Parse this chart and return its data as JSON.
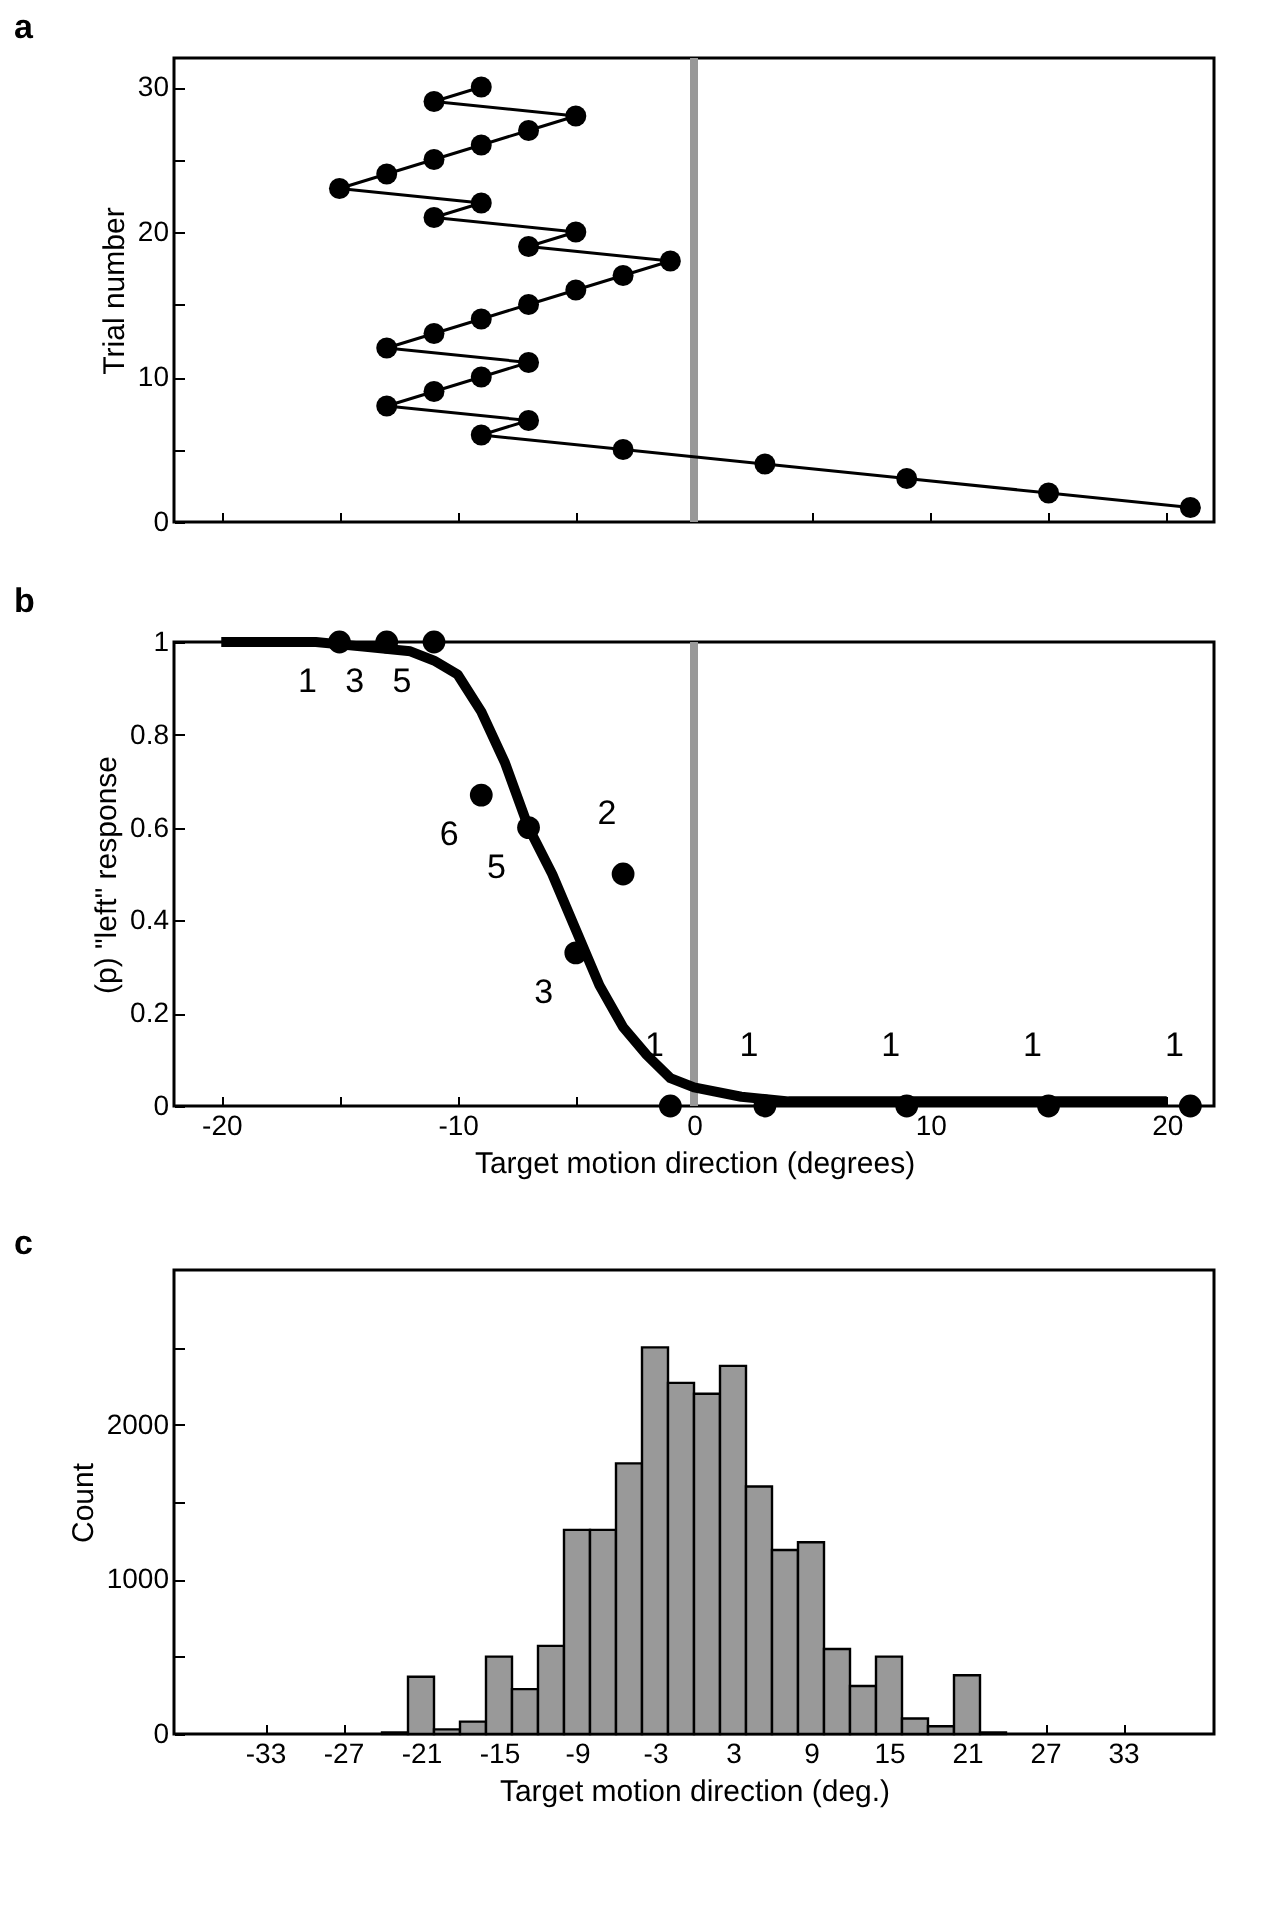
{
  "chart_data": [
    {
      "type": "line",
      "title": "a",
      "ylabel": "Trial number",
      "marker": "circle",
      "grid": false,
      "tick_labels": "y",
      "series": [
        {
          "type": "line",
          "color": "#000000",
          "x": [
            21,
            15,
            9,
            3,
            -3,
            -9,
            -7,
            -13,
            -11,
            -9,
            -7,
            -13,
            -11,
            -9,
            -7,
            -5,
            -3,
            -1,
            -7,
            -5,
            -11,
            -9,
            -15,
            -13,
            -11,
            -9,
            -7,
            -5,
            -11,
            -9
          ],
          "values": [
            1,
            2,
            3,
            4,
            5,
            6,
            7,
            8,
            9,
            10,
            11,
            12,
            13,
            14,
            15,
            16,
            17,
            18,
            19,
            20,
            21,
            22,
            23,
            24,
            25,
            26,
            27,
            28,
            29,
            30
          ]
        }
      ],
      "xlim": [
        -22,
        22
      ],
      "xticks": [
        {
          "value": -20,
          "label": null
        },
        {
          "value": -15,
          "label": null
        },
        {
          "value": -10,
          "label": null
        },
        {
          "value": -5,
          "label": null
        },
        {
          "value": 0,
          "label": null
        },
        {
          "value": 5,
          "label": null
        },
        {
          "value": 10,
          "label": null
        },
        {
          "value": 15,
          "label": null
        },
        {
          "value": 20,
          "label": null
        }
      ],
      "ylim": [
        0,
        32
      ],
      "yticks": [
        0,
        {
          "value": 5,
          "label": null
        },
        10,
        {
          "value": 15,
          "label": null
        },
        20,
        {
          "value": 25,
          "label": null
        },
        30
      ],
      "ref_lines": [
        {
          "axis": "x",
          "value": 0,
          "color": "#999999"
        }
      ]
    },
    {
      "type": "scatter",
      "title": "b",
      "xlabel": "Target motion direction (degrees)",
      "ylabel": "(p) \"left\" response",
      "grid": false,
      "marker": "circle",
      "annotations": [
        {
          "text": "1",
          "x": -15,
          "y": 1
        },
        {
          "text": "3",
          "x": -13,
          "y": 1
        },
        {
          "text": "5",
          "x": -11,
          "y": 1
        },
        {
          "text": "6",
          "x": -9,
          "y": 0.67
        },
        {
          "text": "5",
          "x": -7,
          "y": 0.6
        },
        {
          "text": "3",
          "x": -5,
          "y": 0.33
        },
        {
          "text": "2",
          "x": -3,
          "y": 0.5
        },
        {
          "text": "1",
          "x": -1,
          "y": 0
        },
        {
          "text": "1",
          "x": 3,
          "y": 0
        },
        {
          "text": "1",
          "x": 9,
          "y": 0
        },
        {
          "text": "1",
          "x": 15,
          "y": 0
        },
        {
          "text": "1",
          "x": 21,
          "y": 0
        }
      ],
      "series": [
        {
          "type": "scatter",
          "color": "#000000",
          "x": [
            -15,
            -13,
            -11,
            -9,
            -7,
            -5,
            -3,
            -1,
            3,
            9,
            15,
            21
          ],
          "values": [
            1,
            1,
            1,
            0.67,
            0.6,
            0.33,
            0.5,
            0,
            0,
            0,
            0,
            0
          ]
        },
        {
          "type": "line",
          "color": "#000000",
          "marker": "none",
          "x": [
            -20,
            -16,
            -14,
            -12,
            -11,
            -10,
            -9,
            -8,
            -7,
            -6,
            -5,
            -4,
            -3,
            -2,
            -1,
            0,
            2,
            4,
            6,
            10,
            20
          ],
          "values": [
            1,
            1,
            0.99,
            0.98,
            0.96,
            0.93,
            0.85,
            0.74,
            0.6,
            0.5,
            0.38,
            0.26,
            0.17,
            0.11,
            0.06,
            0.04,
            0.02,
            0.01,
            0.01,
            0.01,
            0.01
          ]
        }
      ],
      "xlim": [
        -22,
        22
      ],
      "xticks": [
        -20,
        {
          "value": -15,
          "label": null
        },
        -10,
        {
          "value": -5,
          "label": null
        },
        0,
        {
          "value": 5,
          "label": null
        },
        10,
        {
          "value": 15,
          "label": null
        },
        20
      ],
      "ylim": [
        0,
        1
      ],
      "yticks": [
        0,
        0.2,
        0.4,
        0.6,
        0.8,
        1
      ],
      "ref_lines": [
        {
          "axis": "x",
          "value": 0,
          "color": "#999999"
        }
      ]
    },
    {
      "type": "histogram",
      "title": "c",
      "xlabel": "Target motion direction (deg.)",
      "ylabel": "Count",
      "grid": false,
      "color": "#999999",
      "bins": [
        -24,
        -22,
        -20,
        -18,
        -16,
        -14,
        -12,
        -10,
        -8,
        -6,
        -4,
        -2,
        0,
        2,
        4,
        6,
        8,
        10,
        12,
        14,
        16,
        18,
        20,
        22,
        24
      ],
      "values": [
        10,
        370,
        30,
        80,
        500,
        290,
        570,
        1320,
        1320,
        1750,
        2500,
        2270,
        2200,
        2380,
        1600,
        1190,
        1240,
        550,
        310,
        500,
        100,
        50,
        380,
        10
      ],
      "xlim": [
        -40,
        40
      ],
      "xticks": [
        -33,
        -27,
        -21,
        -15,
        -9,
        -3,
        3,
        9,
        15,
        21,
        27,
        33
      ],
      "ylim": [
        0,
        3000
      ],
      "yticks": [
        0,
        {
          "value": 500,
          "label": null
        },
        1000,
        {
          "value": 1500,
          "label": null
        },
        2000,
        {
          "value": 2500,
          "label": null
        }
      ]
    }
  ]
}
